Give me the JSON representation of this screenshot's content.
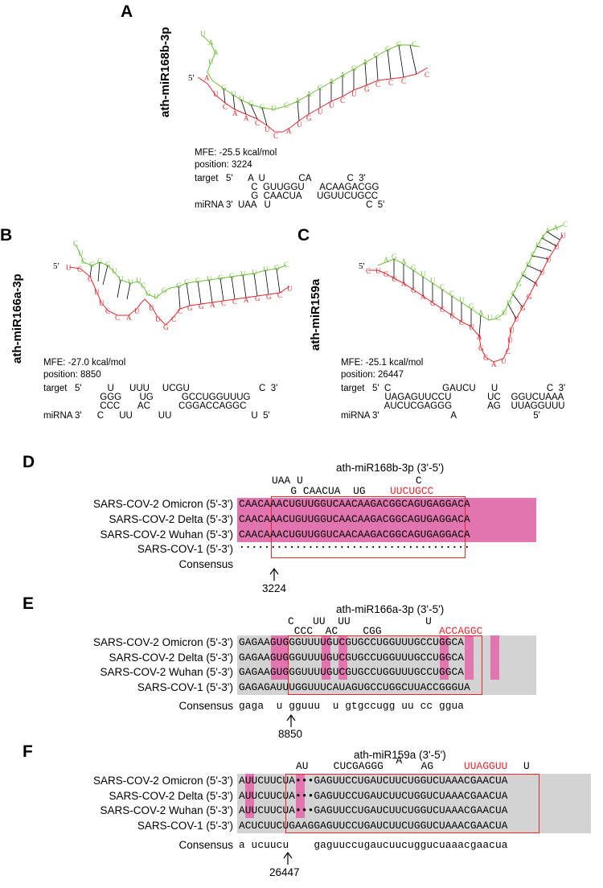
{
  "colors": {
    "mirna_strand": "#e8272b",
    "target_strand": "#6fbf3a",
    "highlight_pink": "#e275b0",
    "highlight_gray": "#d3d3d3",
    "box_red": "#e8272b"
  },
  "panelA": {
    "label": "A",
    "mirna": "ath-miR168b-3p",
    "five_prime": "5'",
    "mfe": "MFE: -25.5 kcal/mol",
    "position": "position: 3224",
    "duplex": [
      "target   5'      A  U             CA              C  3'",
      "                      C  GUUGGU      ACAAGACGG",
      "                      G  CAACUA      UGUUCUGCC",
      "miRNA 3'  UAA   U                                     C  5'"
    ]
  },
  "panelB": {
    "label": "B",
    "mirna": "ath-miR166a-3p",
    "five_prime": "5'",
    "mfe": "MFE: -27.0 kcal/mol",
    "position": "position: 8850",
    "duplex": [
      "target   5'          U      UUU     UCGU                           C  3'",
      "                      GGG       UG           GCCUGGUUUG",
      "                      CCC       AC           CGGACCAGGC",
      "miRNA 3'      C      UU          UU                               U  5'"
    ]
  },
  "panelC": {
    "label": "C",
    "mirna": "ath-miR159a",
    "five_prime": "5'",
    "mfe": "MFE: -25.1 kcal/mol",
    "position": "position: 26447",
    "duplex": [
      "target   5'  C                    GAUCU      U                   C  3'",
      "                 UAGAGUUCCU              UC    GGUCUAAA",
      "                 AUCUCGAGGG              AG    UUAGGUUU",
      "miRNA 3'                            A                              5'"
    ]
  },
  "panelD": {
    "label": "D",
    "title": "ath-miR168b-3p (3'-5')",
    "mirna_rows": [
      "UAA U                  C",
      "   G CAACUA  UG"
    ],
    "mirna_red": "UUCUGCC",
    "rows": [
      {
        "name": "SARS-COV-2 Omicron (5'-3')",
        "seq": "CAACAAACUGUUGGUCAACAAGACGGCAGUGAGGACA"
      },
      {
        "name": "SARS-COV-2 Delta (5'-3')",
        "seq": "CAACAAACUGUUGGUCAACAAGACGGCAGUGAGGACA"
      },
      {
        "name": "SARS-COV-2 Wuhan (5'-3')",
        "seq": "CAACAAACUGUUGGUCAACAAGACGGCAGUGAGGACA"
      },
      {
        "name": "SARS-COV-1 (5'-3')",
        "seq": "....................................."
      }
    ],
    "consensus_label": "Consensus",
    "consensus": "",
    "position": "3224"
  },
  "panelE": {
    "label": "E",
    "title": "ath-miR166a-3p (3'-5')",
    "mirna_rows": [
      "C   UU  UU            U",
      " CCC  AC    CGG"
    ],
    "mirna_red": "ACCAGGC",
    "rows": [
      {
        "name": "SARS-COV-2 Omicron (5'-3')",
        "seq": "GAGAAGUGGGUUUUGUCGUGCCUGGUUUGCCUGGCA"
      },
      {
        "name": "SARS-COV-2 Delta (5'-3')",
        "seq": "GAGAAGUGGGUUUUGUCGUGCCUGGUUUGCCUGGCA"
      },
      {
        "name": "SARS-COV-2 Wuhan (5'-3')",
        "seq": "GAGAAGUGGGUUUUGUCGUGCCUGGUUUGCCUGGCA"
      },
      {
        "name": "SARS-COV-1 (5'-3')",
        "seq": "GAGAGAUUUGGUUUCAUAGUGCCUGGCUUACCGGGUA"
      }
    ],
    "consensus_label": "Consensus",
    "consensus": "gaga  u gguuu  u gtgccugg uu cc ggua",
    "position": "8850"
  },
  "panelF": {
    "label": "F",
    "title": "ath-miR159a (3'-5')",
    "mirna_rows": [
      "AU    CUCGAGGG      AG   ",
      "                A"
    ],
    "mirna_red": "UUAGGUU",
    "mirna_tail": "U",
    "rows": [
      {
        "name": "SARS-COV-2 Omicron (5'-3')",
        "seq": "AUUCUUCUA•••GAGUUCCUGAUCUUCUGGUCUAAACGAACUA"
      },
      {
        "name": "SARS-COV-2 Delta (5'-3')",
        "seq": "AUUCUUCUA•••GAGUUCCUGAUCUUCUGGUCUAAACGAACUA"
      },
      {
        "name": "SARS-COV-2 Wuhan (5'-3')",
        "seq": "AUUCUUCUA•••GAGUUCCUGAUCUUCUGGUCUAAACGAACUA"
      },
      {
        "name": "SARS-COV-1 (5'-3')",
        "seq": "ACUCUUCUGAAGGAGUUCCUGAUCUUCUGGUCUAAACGAACUA"
      }
    ],
    "consensus_label": "Consensus",
    "consensus": "a ucuucu    gaguuccugaucuucuggucuaaacgaacua",
    "position": "26447"
  }
}
